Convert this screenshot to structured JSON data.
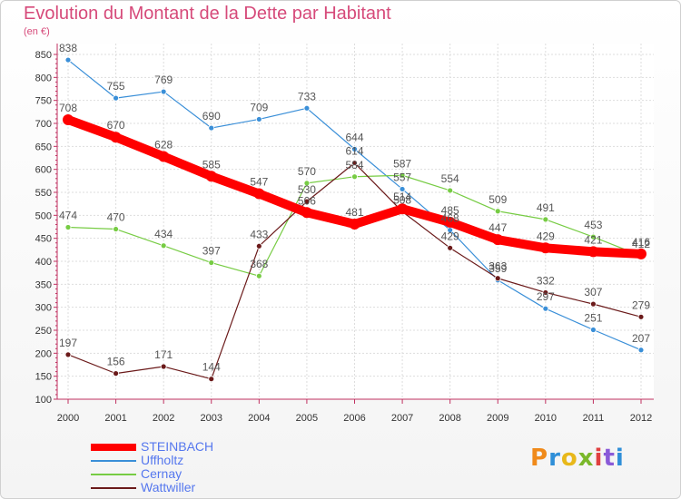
{
  "title": "Evolution du Montant de la Dette par Habitant",
  "unit": "(en €)",
  "logo": {
    "text": "Proxiti",
    "colors": [
      "#f08a1a",
      "#2f8fd8",
      "#e8b81a",
      "#7ab82a",
      "#e04040",
      "#8a5ad8",
      "#2f8fd8"
    ]
  },
  "chart_data": {
    "type": "line",
    "x": [
      "2000",
      "2001",
      "2002",
      "2003",
      "2004",
      "2005",
      "2006",
      "2007",
      "2008",
      "2009",
      "2010",
      "2011",
      "2012"
    ],
    "ylim": [
      100,
      850
    ],
    "yticks": [
      100,
      150,
      200,
      250,
      300,
      350,
      400,
      450,
      500,
      550,
      600,
      650,
      700,
      750,
      800,
      850
    ],
    "grid": true,
    "legend": "bottom-left",
    "series": [
      {
        "name": "STEINBACH",
        "color": "#ff0000",
        "values": [
          708,
          670,
          628,
          585,
          547,
          506,
          481,
          514,
          485,
          447,
          429,
          421,
          416
        ]
      },
      {
        "name": "Uffholtz",
        "color": "#3a8fd8",
        "values": [
          838,
          755,
          769,
          690,
          709,
          733,
          644,
          557,
          468,
          359,
          297,
          251,
          207
        ]
      },
      {
        "name": "Cernay",
        "color": "#77cc44",
        "values": [
          474,
          470,
          434,
          397,
          368,
          570,
          584,
          587,
          554,
          509,
          491,
          453,
          412
        ]
      },
      {
        "name": "Wattwiller",
        "color": "#6b1a1a",
        "values": [
          197,
          156,
          171,
          144,
          433,
          530,
          614,
          508,
          429,
          363,
          332,
          307,
          279
        ]
      }
    ]
  }
}
